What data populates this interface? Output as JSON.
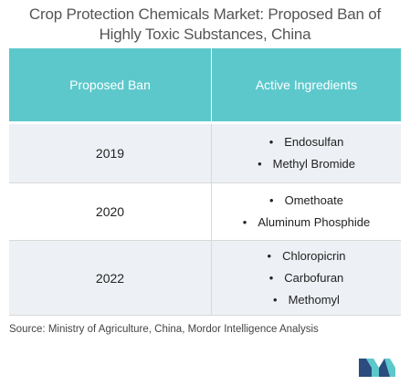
{
  "title": {
    "line1": "Crop Protection Chemicals Market: Proposed Ban of",
    "line2": "Highly Toxic Substances, China"
  },
  "table": {
    "headers": [
      "Proposed Ban",
      "Active Ingredients"
    ],
    "rows": [
      {
        "year": "2019",
        "ingredients": [
          "Endosulfan",
          "Methyl Bromide"
        ]
      },
      {
        "year": "2020",
        "ingredients": [
          "Omethoate",
          "Aluminum Phosphide"
        ]
      },
      {
        "year": "2022",
        "ingredients": [
          "Chloropicrin",
          "Carbofuran",
          "Methomyl"
        ]
      }
    ]
  },
  "source": "Source: Ministry of Agriculture, China, Mordor Intelligence Analysis",
  "colors": {
    "header_bg": "#5cc8cc",
    "row_alt_bg": "#edf0f4",
    "logo_dark": "#2b4c7e",
    "logo_light": "#5cc8cc"
  },
  "icons": {
    "logo": "mordor-intelligence-logo"
  }
}
